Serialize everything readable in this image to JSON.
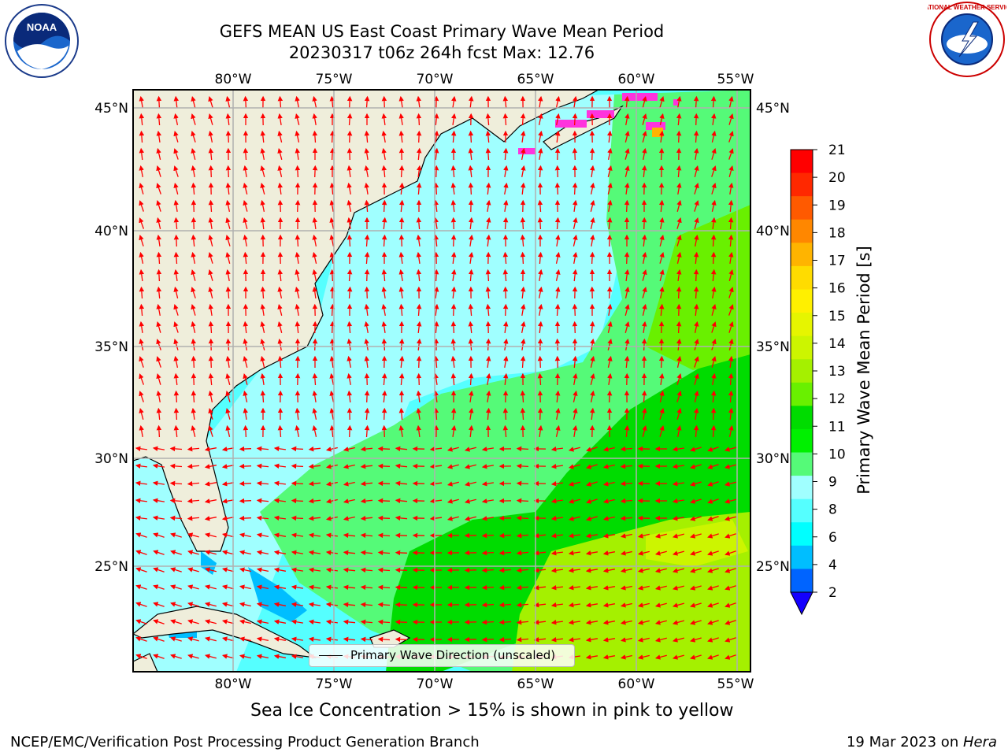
{
  "title": {
    "line1": "GEFS MEAN US East Coast Primary Wave Mean Period",
    "line2": "20230317 t06z 264h fcst   Max: 12.76"
  },
  "map": {
    "lon_labels": [
      "80°W",
      "75°W",
      "70°W",
      "65°W",
      "60°W",
      "55°W"
    ],
    "lat_labels": [
      "45°N",
      "40°N",
      "35°N",
      "30°N",
      "25°N"
    ],
    "legend_label": "Primary Wave Direction (unscaled)",
    "colors": {
      "land": "#efeedb",
      "arrow": "#ff0000",
      "grid": "#b0b0b0",
      "coast": "#000000"
    }
  },
  "colorbar": {
    "label": "Primary Wave Mean Period [s]",
    "ticks": [
      "21",
      "20",
      "19",
      "18",
      "17",
      "16",
      "15",
      "14",
      "13",
      "12",
      "11",
      "10",
      "9",
      "8",
      "6",
      "4",
      "2"
    ],
    "colors": [
      "#ff0000",
      "#ff2800",
      "#ff5a00",
      "#ff8700",
      "#ffb400",
      "#ffdc00",
      "#fff000",
      "#e6f500",
      "#ccf500",
      "#a5f000",
      "#69f000",
      "#00dc00",
      "#00f000",
      "#55fa78",
      "#a0ffff",
      "#55ffff",
      "#00ffff",
      "#00beff",
      "#0064ff"
    ],
    "extend_color": "#1400ff"
  },
  "sea_ice_note": "Sea Ice Concentration > 15% is shown in pink to yellow",
  "footer": {
    "left": "NCEP/EMC/Verification Post Processing Product Generation Branch",
    "right_prefix": "19 Mar 2023 on ",
    "right_host": "Hera"
  },
  "logos": {
    "noaa": "NOAA",
    "nws": "NATIONAL WEATHER SERVICE"
  }
}
